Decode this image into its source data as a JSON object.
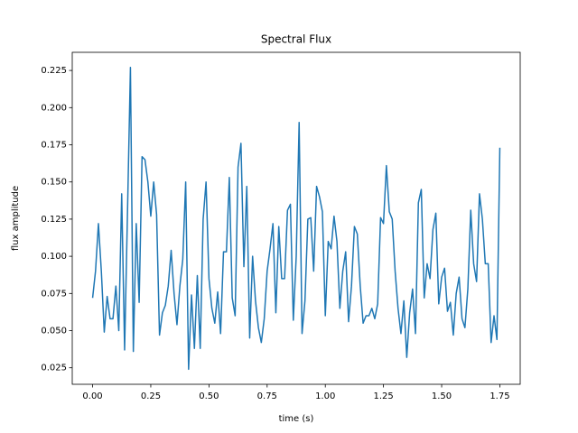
{
  "chart_data": {
    "type": "line",
    "title": "Spectral Flux",
    "x_label": "time (s)",
    "y_label": "flux amplitude",
    "color": "#1f77b4",
    "x": [
      0,
      0.0125,
      0.025,
      0.0375,
      0.05,
      0.0625,
      0.075,
      0.0875,
      0.1,
      0.1125,
      0.125,
      0.1375,
      0.15,
      0.1625,
      0.175,
      0.1875,
      0.2,
      0.2125,
      0.225,
      0.2375,
      0.25,
      0.2625,
      0.275,
      0.2875,
      0.3,
      0.3125,
      0.325,
      0.3375,
      0.35,
      0.3625,
      0.375,
      0.3875,
      0.4,
      0.4125,
      0.425,
      0.4375,
      0.45,
      0.4625,
      0.475,
      0.4875,
      0.5,
      0.5125,
      0.525,
      0.5375,
      0.55,
      0.5625,
      0.575,
      0.5875,
      0.6,
      0.6125,
      0.625,
      0.6375,
      0.65,
      0.6625,
      0.675,
      0.6875,
      0.7,
      0.7125,
      0.725,
      0.7375,
      0.75,
      0.7625,
      0.775,
      0.7875,
      0.8,
      0.8125,
      0.825,
      0.8375,
      0.85,
      0.8625,
      0.875,
      0.8875,
      0.9,
      0.9125,
      0.925,
      0.9375,
      0.95,
      0.9625,
      0.975,
      0.9875,
      1,
      1.0125,
      1.025,
      1.0375,
      1.05,
      1.0625,
      1.075,
      1.0875,
      1.1,
      1.1125,
      1.125,
      1.1375,
      1.15,
      1.1625,
      1.175,
      1.1875,
      1.2,
      1.2125,
      1.225,
      1.2375,
      1.25,
      1.2625,
      1.275,
      1.2875,
      1.3,
      1.3125,
      1.325,
      1.3375,
      1.35,
      1.3625,
      1.375,
      1.3875,
      1.4,
      1.4125,
      1.425,
      1.4375,
      1.45,
      1.4625,
      1.475,
      1.4875,
      1.5,
      1.5125,
      1.525,
      1.5375,
      1.55,
      1.5625,
      1.575,
      1.5875,
      1.6,
      1.6125,
      1.625,
      1.6375,
      1.65,
      1.6625,
      1.675,
      1.6875,
      1.7,
      1.7125,
      1.725,
      1.7375,
      1.75
    ],
    "values": [
      0.072,
      0.09,
      0.122,
      0.09,
      0.049,
      0.073,
      0.058,
      0.058,
      0.08,
      0.05,
      0.142,
      0.037,
      0.13,
      0.227,
      0.036,
      0.122,
      0.069,
      0.167,
      0.165,
      0.15,
      0.127,
      0.15,
      0.128,
      0.047,
      0.062,
      0.067,
      0.08,
      0.104,
      0.075,
      0.054,
      0.08,
      0.098,
      0.15,
      0.024,
      0.074,
      0.038,
      0.087,
      0.038,
      0.125,
      0.15,
      0.085,
      0.065,
      0.055,
      0.076,
      0.048,
      0.103,
      0.103,
      0.153,
      0.072,
      0.06,
      0.16,
      0.176,
      0.093,
      0.147,
      0.045,
      0.1,
      0.07,
      0.052,
      0.042,
      0.058,
      0.09,
      0.105,
      0.122,
      0.062,
      0.12,
      0.085,
      0.085,
      0.131,
      0.135,
      0.057,
      0.1,
      0.19,
      0.048,
      0.07,
      0.125,
      0.126,
      0.09,
      0.147,
      0.14,
      0.13,
      0.06,
      0.11,
      0.105,
      0.127,
      0.11,
      0.065,
      0.09,
      0.103,
      0.056,
      0.08,
      0.12,
      0.115,
      0.08,
      0.055,
      0.06,
      0.06,
      0.065,
      0.058,
      0.068,
      0.126,
      0.122,
      0.161,
      0.13,
      0.125,
      0.09,
      0.065,
      0.048,
      0.07,
      0.032,
      0.062,
      0.078,
      0.048,
      0.136,
      0.145,
      0.072,
      0.095,
      0.085,
      0.118,
      0.129,
      0.068,
      0.086,
      0.092,
      0.063,
      0.069,
      0.047,
      0.075,
      0.086,
      0.058,
      0.052,
      0.078,
      0.131,
      0.095,
      0.083,
      0.142,
      0.125,
      0.095,
      0.095,
      0.042,
      0.06,
      0.044,
      0.173
    ],
    "xlim": [
      -0.0875,
      1.8375
    ],
    "ylim": [
      0.0139,
      0.2372
    ],
    "xticks": [
      {
        "value": 0,
        "label": "0.00"
      },
      0.25,
      {
        "value": 0.5,
        "label": "0.50"
      },
      0.75,
      {
        "value": 1,
        "label": "1.00"
      },
      1.25,
      {
        "value": 1.5,
        "label": "1.50"
      },
      1.75
    ],
    "yticks": [
      0.025,
      {
        "value": 0.05,
        "label": "0.050"
      },
      0.075,
      {
        "value": 0.1,
        "label": "0.100"
      },
      0.125,
      {
        "value": 0.15,
        "label": "0.150"
      },
      0.175,
      {
        "value": 0.2,
        "label": "0.200"
      },
      0.225
    ]
  }
}
